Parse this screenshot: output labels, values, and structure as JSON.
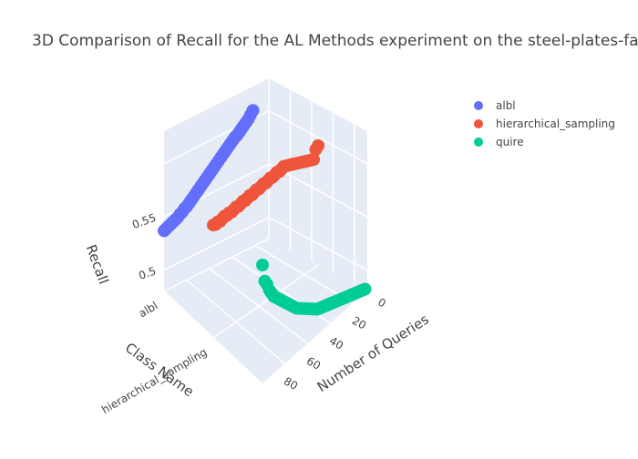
{
  "chart_data": {
    "type": "scatter",
    "title": "3D Comparison of Recall for the AL Methods experiment on the steel-plates-fa",
    "axis_titles": {
      "y_axis": "Class Name",
      "x_axis": "Number of Queries",
      "z_axis": "Recall"
    },
    "z_ticks": [
      "0.55",
      "0.5"
    ],
    "y_ticks": [
      "albl",
      "hierarchical_sampling"
    ],
    "x_ticks": [
      "0",
      "20",
      "40",
      "60",
      "80"
    ],
    "legend_position": "top-right",
    "series": [
      {
        "name": "albl",
        "color": "#636efa",
        "class_index": 0,
        "points": [
          [
            0,
            0.537
          ],
          [
            2,
            0.538
          ],
          [
            4,
            0.539
          ],
          [
            6,
            0.54
          ],
          [
            8,
            0.541
          ],
          [
            10,
            0.542
          ],
          [
            12,
            0.543
          ],
          [
            14,
            0.545
          ],
          [
            16,
            0.546
          ],
          [
            18,
            0.548
          ],
          [
            20,
            0.549
          ],
          [
            22,
            0.551
          ],
          [
            24,
            0.553
          ],
          [
            26,
            0.555
          ],
          [
            28,
            0.557
          ],
          [
            30,
            0.559
          ],
          [
            32,
            0.561
          ],
          [
            34,
            0.563
          ],
          [
            36,
            0.565
          ],
          [
            38,
            0.567
          ],
          [
            40,
            0.569
          ],
          [
            42,
            0.571
          ],
          [
            44,
            0.573
          ],
          [
            46,
            0.575
          ],
          [
            48,
            0.577
          ],
          [
            50,
            0.579
          ],
          [
            52,
            0.581
          ],
          [
            54,
            0.583
          ],
          [
            56,
            0.585
          ],
          [
            58,
            0.587
          ],
          [
            60,
            0.589
          ],
          [
            62,
            0.591
          ],
          [
            64,
            0.592
          ],
          [
            66,
            0.594
          ],
          [
            68,
            0.596
          ],
          [
            70,
            0.598
          ],
          [
            72,
            0.6
          ],
          [
            74,
            0.602
          ],
          [
            76,
            0.605
          ],
          [
            78,
            0.608
          ]
        ]
      },
      {
        "name": "hierarchical_sampling",
        "color": "#ef553b",
        "class_index": 1,
        "points": [
          [
            0,
            0.586
          ],
          [
            2,
            0.585
          ],
          [
            4,
            0.586
          ],
          [
            6,
            0.585
          ],
          [
            8,
            0.586
          ],
          [
            10,
            0.587
          ],
          [
            12,
            0.586
          ],
          [
            14,
            0.587
          ],
          [
            16,
            0.586
          ],
          [
            18,
            0.587
          ],
          [
            20,
            0.588
          ],
          [
            22,
            0.587
          ],
          [
            24,
            0.588
          ],
          [
            26,
            0.589
          ],
          [
            28,
            0.588
          ],
          [
            30,
            0.589
          ],
          [
            32,
            0.59
          ],
          [
            34,
            0.589
          ],
          [
            36,
            0.59
          ],
          [
            38,
            0.591
          ],
          [
            40,
            0.59
          ],
          [
            42,
            0.591
          ],
          [
            44,
            0.592
          ],
          [
            46,
            0.591
          ],
          [
            48,
            0.592
          ],
          [
            50,
            0.593
          ],
          [
            52,
            0.592
          ],
          [
            54,
            0.593
          ],
          [
            56,
            0.594
          ],
          [
            58,
            0.593
          ],
          [
            60,
            0.594
          ],
          [
            62,
            0.595
          ],
          [
            64,
            0.594
          ],
          [
            66,
            0.593
          ],
          [
            68,
            0.592
          ],
          [
            70,
            0.591
          ],
          [
            72,
            0.59
          ],
          [
            74,
            0.589
          ],
          [
            76,
            0.588
          ],
          [
            78,
            0.587
          ],
          [
            80,
            0.586
          ],
          [
            82,
            0.585
          ],
          [
            84,
            0.584
          ],
          [
            86,
            0.583
          ],
          [
            88,
            0.582
          ],
          [
            90,
            0.59
          ],
          [
            92,
            0.592
          ]
        ]
      },
      {
        "name": "quire",
        "color": "#00cc96",
        "class_index": 2,
        "points": [
          [
            0,
            0.592
          ],
          [
            2,
            0.575
          ],
          [
            4,
            0.57
          ],
          [
            6,
            0.563
          ],
          [
            8,
            0.558
          ],
          [
            10,
            0.553
          ],
          [
            12,
            0.55
          ],
          [
            14,
            0.547
          ],
          [
            16,
            0.544
          ],
          [
            18,
            0.541
          ],
          [
            20,
            0.538
          ],
          [
            22,
            0.535
          ],
          [
            24,
            0.532
          ],
          [
            26,
            0.529
          ],
          [
            28,
            0.526
          ],
          [
            30,
            0.523
          ],
          [
            32,
            0.521
          ],
          [
            34,
            0.519
          ],
          [
            36,
            0.517
          ],
          [
            38,
            0.515
          ],
          [
            40,
            0.513
          ],
          [
            42,
            0.511
          ],
          [
            44,
            0.509
          ],
          [
            46,
            0.507
          ],
          [
            48,
            0.505
          ],
          [
            50,
            0.504
          ],
          [
            52,
            0.503
          ],
          [
            54,
            0.502
          ],
          [
            56,
            0.501
          ],
          [
            58,
            0.5
          ],
          [
            60,
            0.499
          ],
          [
            62,
            0.498
          ],
          [
            64,
            0.497
          ],
          [
            66,
            0.496
          ],
          [
            68,
            0.495
          ],
          [
            70,
            0.494
          ],
          [
            72,
            0.493
          ],
          [
            74,
            0.492
          ],
          [
            76,
            0.491
          ],
          [
            78,
            0.49
          ],
          [
            80,
            0.489
          ],
          [
            82,
            0.488
          ],
          [
            84,
            0.487
          ],
          [
            86,
            0.486
          ],
          [
            88,
            0.485
          ],
          [
            90,
            0.484
          ]
        ]
      }
    ]
  }
}
